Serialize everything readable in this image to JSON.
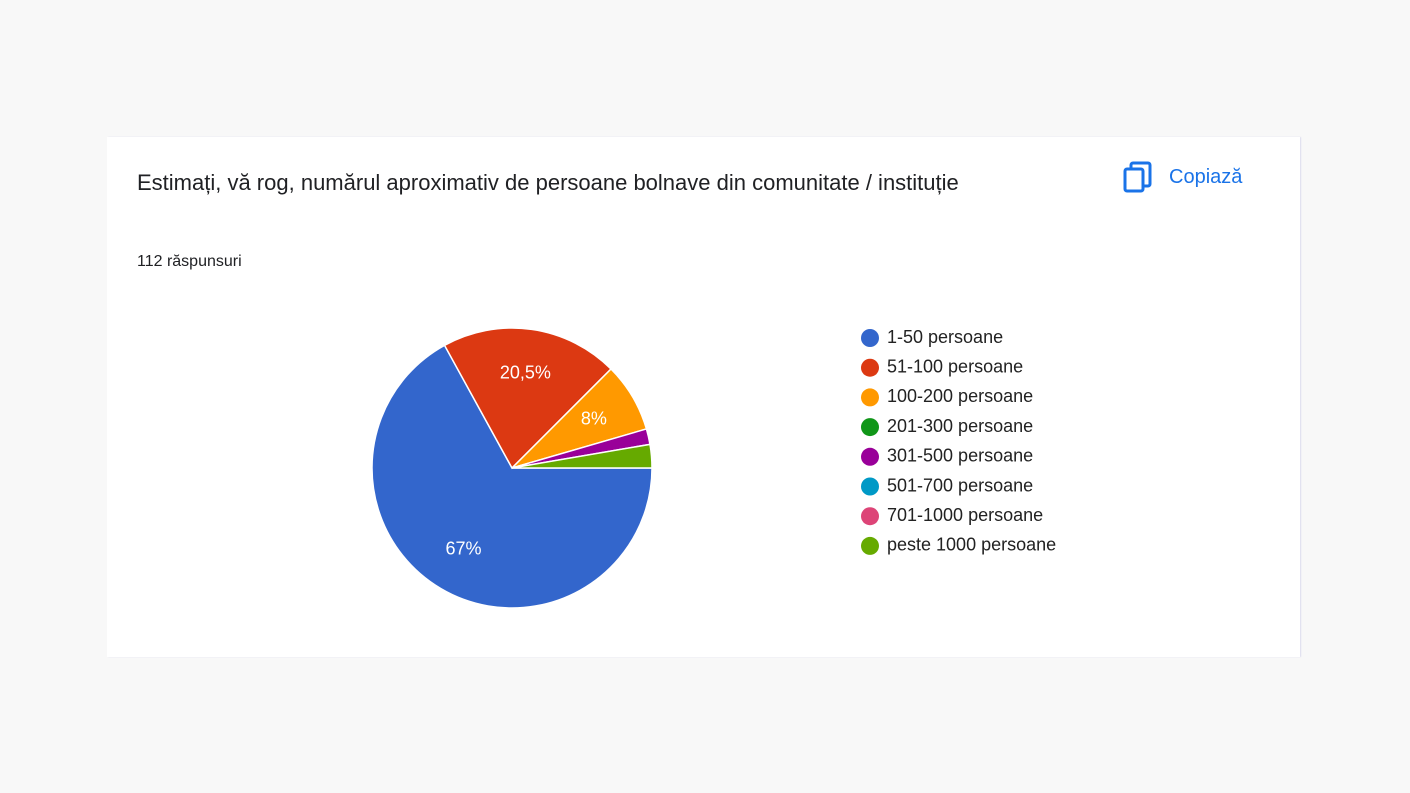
{
  "chart_data": {
    "type": "pie",
    "title": "Estimați, vă rog, numărul aproximativ de persoane bolnave din comunitate / instituție",
    "subtitle": "112 răspunsuri",
    "copy_button": "Copiază",
    "categories": [
      "1-50 persoane",
      "51-100 persoane",
      "100-200 persoane",
      "201-300 persoane",
      "301-500 persoane",
      "501-700 persoane",
      "701-1000 persoane",
      "peste 1000 persoane"
    ],
    "values": [
      67,
      20.5,
      8,
      0,
      1.8,
      0,
      0,
      2.7
    ],
    "value_labels": [
      "67%",
      "20,5%",
      "8%",
      null,
      null,
      null,
      null,
      null
    ],
    "colors": [
      "#3366cc",
      "#dc3912",
      "#ff9900",
      "#109618",
      "#990099",
      "#0099c6",
      "#dd4477",
      "#66aa00"
    ]
  }
}
